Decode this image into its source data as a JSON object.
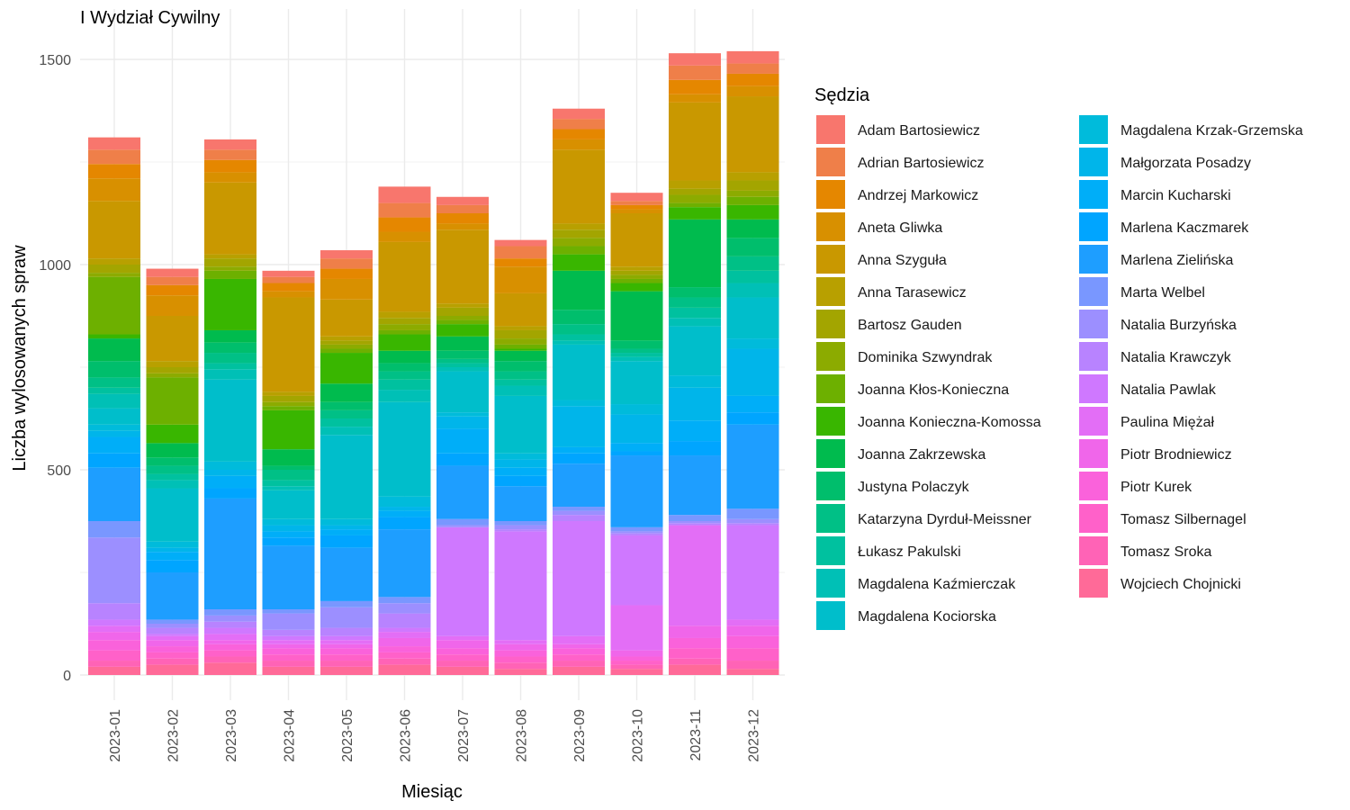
{
  "chart_data": {
    "type": "bar",
    "stacked": true,
    "title": "I Wydział Cywilny",
    "xlabel": "Miesiąc",
    "ylabel": "Liczba wylosowanych spraw",
    "ylim": [
      -60,
      1560
    ],
    "yticks": [
      0,
      500,
      1000,
      1500
    ],
    "grid": true,
    "legend_title": "Sędzia",
    "legend_position": "right",
    "categories": [
      "2023-01",
      "2023-02",
      "2023-03",
      "2023-04",
      "2023-05",
      "2023-06",
      "2023-07",
      "2023-08",
      "2023-09",
      "2023-10",
      "2023-11",
      "2023-12"
    ],
    "series": [
      {
        "name": "Adam Bartosiewicz",
        "color": "#F8766D",
        "values": [
          30,
          20,
          25,
          15,
          20,
          40,
          20,
          15,
          25,
          20,
          30,
          30
        ]
      },
      {
        "name": "Adrian Bartosiewicz",
        "color": "#EF7F49",
        "values": [
          35,
          20,
          25,
          15,
          25,
          35,
          20,
          30,
          25,
          10,
          35,
          25
        ]
      },
      {
        "name": "Andrzej Markowicz",
        "color": "#E58700",
        "values": [
          35,
          25,
          30,
          20,
          25,
          35,
          25,
          20,
          25,
          10,
          35,
          30
        ]
      },
      {
        "name": "Aneta Gliwka",
        "color": "#D89000",
        "values": [
          55,
          50,
          25,
          15,
          50,
          25,
          15,
          65,
          25,
          10,
          20,
          25
        ]
      },
      {
        "name": "Anna Szyguła",
        "color": "#C99800",
        "values": [
          140,
          110,
          175,
          230,
          90,
          170,
          180,
          80,
          180,
          130,
          190,
          185
        ]
      },
      {
        "name": "Anna Tarasewicz",
        "color": "#B8A000",
        "values": [
          15,
          15,
          10,
          10,
          10,
          15,
          10,
          10,
          15,
          10,
          20,
          20
        ]
      },
      {
        "name": "Bartosz Gauden",
        "color": "#A3A500",
        "values": [
          20,
          15,
          20,
          15,
          10,
          15,
          20,
          20,
          20,
          10,
          15,
          25
        ]
      },
      {
        "name": "Dominika Szwyndrak",
        "color": "#8CAB00",
        "values": [
          10,
          10,
          10,
          10,
          10,
          15,
          10,
          15,
          20,
          10,
          20,
          15
        ]
      },
      {
        "name": "Joanna Kłos-Konieczna",
        "color": "#6DB000",
        "values": [
          140,
          115,
          20,
          10,
          10,
          10,
          10,
          10,
          20,
          10,
          10,
          20
        ]
      },
      {
        "name": "Joanna Konieczna-Komossa",
        "color": "#39B600",
        "values": [
          10,
          45,
          125,
          95,
          75,
          40,
          30,
          5,
          40,
          20,
          30,
          35
        ]
      },
      {
        "name": "Joanna Zakrzewska",
        "color": "#00BB4E",
        "values": [
          55,
          35,
          30,
          40,
          45,
          30,
          35,
          25,
          95,
          120,
          165,
          45
        ]
      },
      {
        "name": "Justyna Polaczyk",
        "color": "#00BE6C",
        "values": [
          40,
          20,
          25,
          10,
          20,
          20,
          20,
          25,
          35,
          20,
          25,
          45
        ]
      },
      {
        "name": "Katarzyna Dyrduł-Meissner",
        "color": "#00C086",
        "values": [
          25,
          20,
          25,
          25,
          20,
          20,
          10,
          20,
          25,
          10,
          25,
          35
        ]
      },
      {
        "name": "Łukasz Pakulski",
        "color": "#00C19F",
        "values": [
          15,
          15,
          15,
          15,
          20,
          25,
          10,
          15,
          15,
          10,
          25,
          30
        ]
      },
      {
        "name": "Magdalena Kaźmierczak",
        "color": "#00C0B6",
        "values": [
          35,
          20,
          25,
          10,
          20,
          30,
          10,
          25,
          10,
          10,
          20,
          35
        ]
      },
      {
        "name": "Magdalena Kociorska",
        "color": "#00BECB",
        "values": [
          40,
          130,
          200,
          70,
          205,
          230,
          100,
          140,
          135,
          105,
          120,
          100
        ]
      },
      {
        "name": "Magdalena Krzak-Grzemska",
        "color": "#00BBDB",
        "values": [
          15,
          15,
          20,
          15,
          15,
          25,
          10,
          15,
          15,
          25,
          30,
          25
        ]
      },
      {
        "name": "Małgorzata Posadzy",
        "color": "#00B5EA",
        "values": [
          15,
          10,
          15,
          15,
          10,
          10,
          30,
          20,
          100,
          70,
          80,
          115
        ]
      },
      {
        "name": "Marcin Kucharski",
        "color": "#00AEF8",
        "values": [
          40,
          20,
          30,
          15,
          15,
          15,
          60,
          20,
          15,
          20,
          50,
          40
        ]
      },
      {
        "name": "Marlena Kaczmarek",
        "color": "#00A5FF",
        "values": [
          35,
          30,
          25,
          20,
          30,
          30,
          30,
          25,
          25,
          10,
          35,
          30
        ]
      },
      {
        "name": "Marlena Zielińska",
        "color": "#1E9EFF",
        "values": [
          130,
          115,
          270,
          155,
          130,
          165,
          130,
          85,
          105,
          175,
          145,
          205
        ]
      },
      {
        "name": "Marta Welbel",
        "color": "#7997FF",
        "values": [
          40,
          10,
          15,
          10,
          15,
          15,
          15,
          10,
          10,
          10,
          15,
          25
        ]
      },
      {
        "name": "Natalia Burzyńska",
        "color": "#9C8FFF",
        "values": [
          160,
          10,
          15,
          40,
          50,
          25,
          5,
          10,
          10,
          5,
          5,
          10
        ]
      },
      {
        "name": "Natalia Krawczyk",
        "color": "#B883FF",
        "values": [
          40,
          15,
          15,
          15,
          20,
          35,
          0,
          5,
          15,
          5,
          5,
          5
        ]
      },
      {
        "name": "Natalia Pawlak",
        "color": "#CF78FF",
        "values": [
          15,
          5,
          15,
          10,
          10,
          10,
          265,
          265,
          280,
          170,
          0,
          230
        ]
      },
      {
        "name": "Paulina Miężał",
        "color": "#E36EF6",
        "values": [
          15,
          10,
          15,
          10,
          10,
          15,
          10,
          10,
          20,
          110,
          245,
          15
        ]
      },
      {
        "name": "Piotr Brodniewicz",
        "color": "#F066EA",
        "values": [
          20,
          15,
          10,
          10,
          10,
          20,
          20,
          15,
          10,
          15,
          30,
          25
        ]
      },
      {
        "name": "Piotr Kurek",
        "color": "#FA62DB",
        "values": [
          25,
          15,
          15,
          15,
          15,
          15,
          15,
          15,
          15,
          10,
          25,
          30
        ]
      },
      {
        "name": "Tomasz Silbernagel",
        "color": "#FF61C9",
        "values": [
          25,
          15,
          15,
          15,
          15,
          15,
          15,
          15,
          15,
          10,
          25,
          30
        ]
      },
      {
        "name": "Tomasz Sroka",
        "color": "#FF63B6",
        "values": [
          15,
          15,
          15,
          15,
          15,
          15,
          15,
          15,
          15,
          10,
          15,
          20
        ]
      },
      {
        "name": "Wojciech Chojnicki",
        "color": "#FF6A98",
        "values": [
          20,
          25,
          30,
          20,
          20,
          25,
          20,
          15,
          20,
          15,
          25,
          15
        ]
      }
    ]
  }
}
